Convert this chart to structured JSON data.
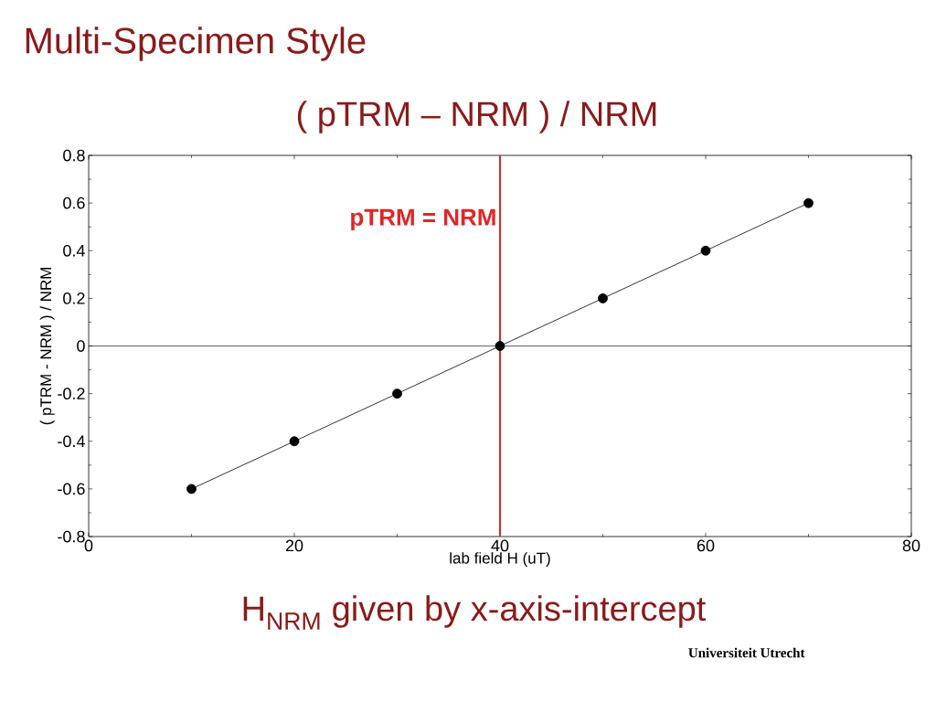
{
  "chart_data": {
    "type": "line",
    "title": "Multi-Specimen Style",
    "subtitle": "( pTRM – NRM ) / NRM",
    "xlabel": "lab field H (uT)",
    "ylabel": "( pTRM - NRM ) / NRM",
    "x": [
      10,
      20,
      30,
      40,
      50,
      60,
      70
    ],
    "series": [
      {
        "color": "#000000",
        "values": [
          -0.6,
          -0.4,
          -0.2,
          0,
          0.2,
          0.4,
          0.6
        ]
      }
    ],
    "xlim": [
      0,
      80
    ],
    "xticks": [
      0,
      20,
      40,
      60,
      80
    ],
    "ylim": [
      -0.8,
      0.8
    ],
    "yticks": [
      -0.8,
      -0.6,
      -0.4,
      -0.2,
      0,
      0.2,
      0.4,
      0.6,
      0.8
    ],
    "ref_lines": [
      {
        "axis": "x",
        "value": 40,
        "label": "pTRM = NRM",
        "color": "#e02626"
      },
      {
        "axis": "y",
        "value": 0,
        "color": "#000000"
      }
    ],
    "annotations": [
      "H$_{NRM}$ given by x-axis-intercept",
      "Universiteit Utrecht"
    ],
    "marker": "circle",
    "line_style": "solid",
    "grid": false
  }
}
